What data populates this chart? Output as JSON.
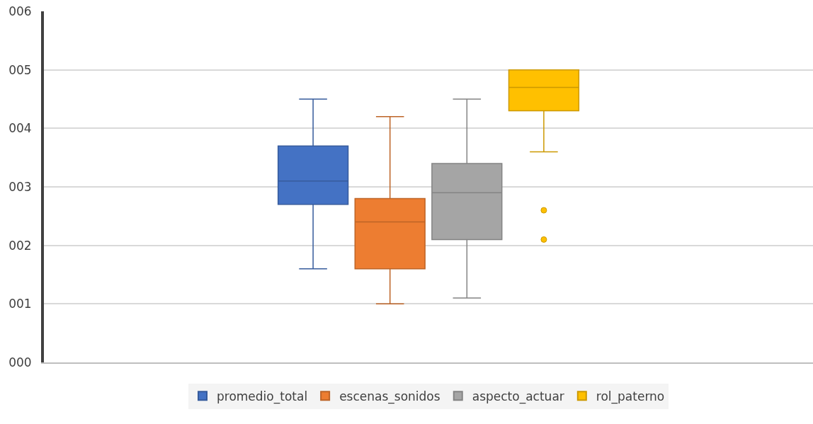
{
  "chart_data": {
    "type": "box",
    "categories": [
      null
    ],
    "ylim": [
      0,
      6
    ],
    "yticks": [
      {
        "value": 0,
        "label": "000"
      },
      {
        "value": 1,
        "label": "001"
      },
      {
        "value": 2,
        "label": "002"
      },
      {
        "value": 3,
        "label": "003"
      },
      {
        "value": 4,
        "label": "004"
      },
      {
        "value": 5,
        "label": "005"
      },
      {
        "value": 6,
        "label": "006"
      }
    ],
    "grid": "y",
    "legend": "bottom",
    "series": [
      {
        "name": "promedio_total",
        "color": "#4472c4",
        "boxes": [
          {
            "low": 1.6,
            "q1": 2.7,
            "median": 3.1,
            "q3": 3.7,
            "high": 4.5
          }
        ]
      },
      {
        "name": "escenas_sonidos",
        "color": "#ed7d31",
        "boxes": [
          {
            "low": 1.0,
            "q1": 1.6,
            "median": 2.4,
            "q3": 2.8,
            "high": 4.2
          }
        ]
      },
      {
        "name": "aspecto_actuar",
        "color": "#a5a5a5",
        "boxes": [
          {
            "low": 1.1,
            "q1": 2.1,
            "median": 2.9,
            "q3": 3.4,
            "high": 4.5
          }
        ]
      },
      {
        "name": "rol_paterno",
        "color": "#ffc000",
        "boxes": [
          {
            "low": 3.6,
            "q1": 4.3,
            "median": 4.7,
            "q3": 5.0,
            "high": 5.0,
            "outliers": [
              2.6,
              2.1
            ]
          }
        ]
      }
    ]
  }
}
